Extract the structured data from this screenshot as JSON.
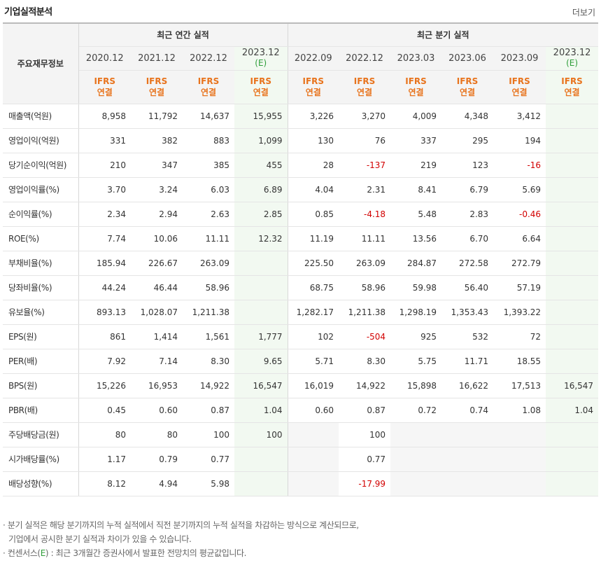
{
  "header": {
    "title": "기업실적분석",
    "more_label": "더보기"
  },
  "table": {
    "row_header": "주요재무정보",
    "groups": [
      "최근 연간 실적",
      "최근 분기 실적"
    ],
    "periods": [
      "2020.12",
      "2021.12",
      "2022.12",
      "2023.12",
      "2022.09",
      "2022.12",
      "2023.03",
      "2023.06",
      "2023.09",
      "2023.12"
    ],
    "estimate_mark": "(E)",
    "ifrs_top": "IFRS",
    "ifrs_bottom": "연결",
    "rows": [
      {
        "label": "매출액(억원)",
        "values": [
          "8,958",
          "11,792",
          "14,637",
          "15,955",
          "3,226",
          "3,270",
          "4,009",
          "4,348",
          "3,412",
          ""
        ]
      },
      {
        "label": "영업이익(억원)",
        "values": [
          "331",
          "382",
          "883",
          "1,099",
          "130",
          "76",
          "337",
          "295",
          "194",
          ""
        ]
      },
      {
        "label": "당기순이익(억원)",
        "values": [
          "210",
          "347",
          "385",
          "455",
          "28",
          "-137",
          "219",
          "123",
          "-16",
          ""
        ]
      },
      {
        "label": "영업이익률(%)",
        "values": [
          "3.70",
          "3.24",
          "6.03",
          "6.89",
          "4.04",
          "2.31",
          "8.41",
          "6.79",
          "5.69",
          ""
        ]
      },
      {
        "label": "순이익률(%)",
        "values": [
          "2.34",
          "2.94",
          "2.63",
          "2.85",
          "0.85",
          "-4.18",
          "5.48",
          "2.83",
          "-0.46",
          ""
        ]
      },
      {
        "label": "ROE(%)",
        "values": [
          "7.74",
          "10.06",
          "11.11",
          "12.32",
          "11.19",
          "11.11",
          "13.56",
          "6.70",
          "6.64",
          ""
        ]
      },
      {
        "label": "부채비율(%)",
        "values": [
          "185.94",
          "226.67",
          "263.09",
          "",
          "225.50",
          "263.09",
          "284.87",
          "272.58",
          "272.79",
          ""
        ]
      },
      {
        "label": "당좌비율(%)",
        "values": [
          "44.24",
          "46.44",
          "58.96",
          "",
          "68.75",
          "58.96",
          "59.98",
          "56.40",
          "57.19",
          ""
        ]
      },
      {
        "label": "유보율(%)",
        "values": [
          "893.13",
          "1,028.07",
          "1,211.38",
          "",
          "1,282.17",
          "1,211.38",
          "1,298.19",
          "1,353.43",
          "1,393.22",
          ""
        ]
      },
      {
        "label": "EPS(원)",
        "values": [
          "861",
          "1,414",
          "1,561",
          "1,777",
          "102",
          "-504",
          "925",
          "532",
          "72",
          ""
        ]
      },
      {
        "label": "PER(배)",
        "values": [
          "7.92",
          "7.14",
          "8.30",
          "9.65",
          "5.71",
          "8.30",
          "5.75",
          "11.71",
          "18.55",
          ""
        ]
      },
      {
        "label": "BPS(원)",
        "values": [
          "15,226",
          "16,953",
          "14,922",
          "16,547",
          "16,019",
          "14,922",
          "15,898",
          "16,622",
          "17,513",
          "16,547"
        ]
      },
      {
        "label": "PBR(배)",
        "values": [
          "0.45",
          "0.60",
          "0.87",
          "1.04",
          "0.60",
          "0.87",
          "0.72",
          "0.74",
          "1.08",
          "1.04"
        ]
      },
      {
        "label": "주당배당금(원)",
        "values": [
          "80",
          "80",
          "100",
          "100",
          "",
          "100",
          "",
          "",
          "",
          ""
        ]
      },
      {
        "label": "시가배당률(%)",
        "values": [
          "1.17",
          "0.79",
          "0.77",
          "",
          "",
          "0.77",
          "",
          "",
          "",
          ""
        ]
      },
      {
        "label": "배당성향(%)",
        "values": [
          "8.12",
          "4.94",
          "5.98",
          "",
          "",
          "-17.99",
          "",
          "",
          "",
          ""
        ]
      }
    ]
  },
  "notes": {
    "line1": "분기 실적은 해당 분기까지의 누적 실적에서 직전 분기까지의 누적 실적을 차감하는 방식으로 계산되므로,",
    "line2": "기업에서 공시한 분기 실적과 차이가 있을 수 있습니다.",
    "line3_pre": "컨센서스(",
    "line3_e": "E",
    "line3_post": ") : 최근 3개월간 증권사에서 발표한 전망치의 평균값입니다."
  }
}
